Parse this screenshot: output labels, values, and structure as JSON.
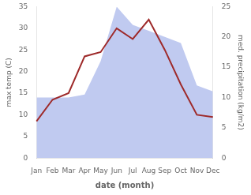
{
  "chart_data": {
    "type": "line",
    "xlabel": "date (month)",
    "ylabel": "max temp (C)",
    "y2label": "med. precipitation (kg/m2)",
    "categories": [
      "Jan",
      "Feb",
      "Mar",
      "Apr",
      "May",
      "Jun",
      "Jul",
      "Aug",
      "Sep",
      "Oct",
      "Nov",
      "Dec"
    ],
    "series": [
      {
        "type": "area",
        "axis": "y2",
        "color": "#c0caf0",
        "values": [
          10.0,
          10.0,
          10.0,
          10.5,
          16.0,
          25.0,
          22.0,
          21.0,
          20.0,
          19.0,
          12.0,
          11.0
        ]
      },
      {
        "type": "line",
        "color": "#9e2a2a",
        "values": [
          8.5,
          13.5,
          15.0,
          23.5,
          24.5,
          30.0,
          27.5,
          32.0,
          25.0,
          17.0,
          10.0,
          9.5
        ]
      }
    ],
    "ylim": [
      0,
      35
    ],
    "yticks": [
      0,
      5,
      10,
      15,
      20,
      25,
      30,
      35
    ],
    "y2lim": [
      0,
      25
    ],
    "y2ticks": [
      0,
      5,
      10,
      15,
      20,
      25
    ],
    "grid": false
  }
}
